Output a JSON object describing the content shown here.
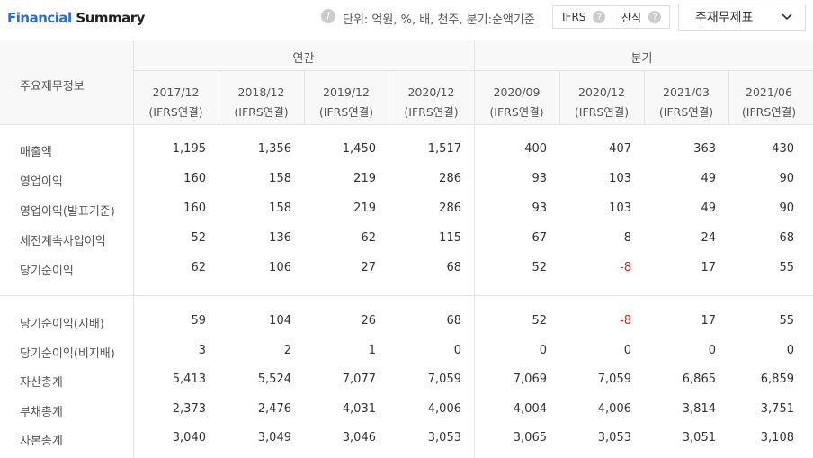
{
  "header": {
    "title_1": "Financial",
    "title_2": "Summary",
    "info_icon": "i",
    "unit_note": "단위: 억원, %, 배, 천주, 분기:순액기준",
    "buttons": [
      {
        "label": "IFRS",
        "help": "?"
      },
      {
        "label": "산식",
        "help": "?"
      }
    ],
    "dropdown": "주재무제표"
  },
  "table": {
    "corner": "주요재무정보",
    "groups": [
      {
        "label": "연간",
        "columns": [
          {
            "period": "2017/12",
            "basis": "(IFRS연결)"
          },
          {
            "period": "2018/12",
            "basis": "(IFRS연결)"
          },
          {
            "period": "2019/12",
            "basis": "(IFRS연결)"
          },
          {
            "period": "2020/12",
            "basis": "(IFRS연결)"
          }
        ]
      },
      {
        "label": "분기",
        "columns": [
          {
            "period": "2020/09",
            "basis": "(IFRS연결)"
          },
          {
            "period": "2020/12",
            "basis": "(IFRS연결)"
          },
          {
            "period": "2021/03",
            "basis": "(IFRS연결)"
          },
          {
            "period": "2021/06",
            "basis": "(IFRS연결)"
          }
        ]
      }
    ],
    "sections": [
      {
        "rows": [
          {
            "label": "매출액",
            "values": [
              "1,195",
              "1,356",
              "1,450",
              "1,517",
              "400",
              "407",
              "363",
              "430"
            ]
          },
          {
            "label": "영업이익",
            "values": [
              "160",
              "158",
              "219",
              "286",
              "93",
              "103",
              "49",
              "90"
            ]
          },
          {
            "label": "영업이익(발표기준)",
            "values": [
              "160",
              "158",
              "219",
              "286",
              "93",
              "103",
              "49",
              "90"
            ]
          },
          {
            "label": "세전계속사업이익",
            "values": [
              "52",
              "136",
              "62",
              "115",
              "67",
              "8",
              "24",
              "68"
            ]
          },
          {
            "label": "당기순이익",
            "values": [
              "62",
              "106",
              "27",
              "68",
              "52",
              "-8",
              "17",
              "55"
            ]
          }
        ]
      },
      {
        "rows": [
          {
            "label": "당기순이익(지배)",
            "values": [
              "59",
              "104",
              "26",
              "68",
              "52",
              "-8",
              "17",
              "55"
            ]
          },
          {
            "label": "당기순이익(비지배)",
            "values": [
              "3",
              "2",
              "1",
              "0",
              "0",
              "0",
              "0",
              "0"
            ]
          },
          {
            "label": "자산총계",
            "values": [
              "5,413",
              "5,524",
              "7,077",
              "7,059",
              "7,069",
              "7,059",
              "6,865",
              "6,859"
            ]
          },
          {
            "label": "부채총계",
            "values": [
              "2,373",
              "2,476",
              "4,031",
              "4,006",
              "4,004",
              "4,006",
              "3,814",
              "3,751"
            ]
          },
          {
            "label": "자본총계",
            "values": [
              "3,040",
              "3,049",
              "3,046",
              "3,053",
              "3,065",
              "3,053",
              "3,051",
              "3,108"
            ]
          }
        ]
      }
    ]
  }
}
